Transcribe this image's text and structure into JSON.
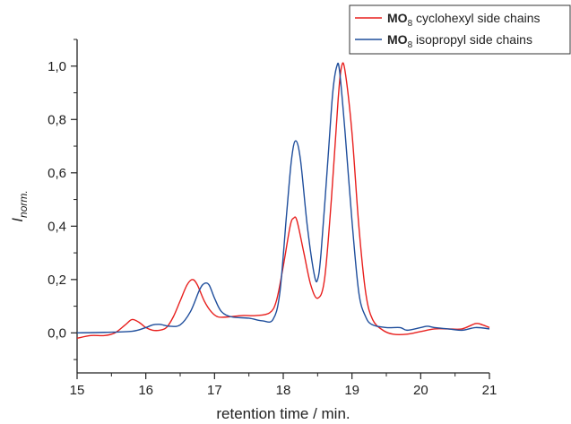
{
  "chart_data": {
    "type": "line",
    "title": "",
    "xlabel": "retention time / min.",
    "ylabel_main": "I",
    "ylabel_sub": "norm.",
    "xlim": [
      15,
      21
    ],
    "ylim": [
      -0.15,
      1.1
    ],
    "x_ticks": [
      15,
      16,
      17,
      18,
      19,
      20,
      21
    ],
    "x_tick_labels": [
      "15",
      "16",
      "17",
      "18",
      "19",
      "20",
      "21"
    ],
    "y_ticks": [
      0.0,
      0.2,
      0.4,
      0.6,
      0.8,
      1.0
    ],
    "y_tick_labels": [
      "0,0",
      "0,2",
      "0,4",
      "0,6",
      "0,8",
      "1,0"
    ],
    "grid": false,
    "legend_position": "top-right",
    "series": [
      {
        "name_bold": "MO",
        "name_sub": "8",
        "name_rest": " cyclohexyl side chains",
        "color": "#e8201e",
        "x": [
          15.0,
          15.2,
          15.4,
          15.55,
          15.7,
          15.8,
          15.9,
          16.0,
          16.1,
          16.2,
          16.3,
          16.4,
          16.5,
          16.6,
          16.68,
          16.75,
          16.85,
          16.95,
          17.05,
          17.2,
          17.4,
          17.6,
          17.8,
          17.9,
          18.0,
          18.1,
          18.15,
          18.2,
          18.3,
          18.4,
          18.5,
          18.6,
          18.7,
          18.8,
          18.85,
          18.9,
          19.0,
          19.1,
          19.2,
          19.3,
          19.45,
          19.6,
          19.8,
          20.0,
          20.2,
          20.4,
          20.6,
          20.8,
          20.9,
          21.0
        ],
        "y": [
          -0.02,
          -0.01,
          -0.01,
          0.0,
          0.03,
          0.05,
          0.04,
          0.02,
          0.01,
          0.01,
          0.02,
          0.06,
          0.12,
          0.18,
          0.2,
          0.18,
          0.12,
          0.08,
          0.06,
          0.06,
          0.065,
          0.065,
          0.075,
          0.12,
          0.25,
          0.4,
          0.43,
          0.42,
          0.3,
          0.18,
          0.13,
          0.2,
          0.5,
          0.88,
          1.0,
          0.98,
          0.75,
          0.4,
          0.15,
          0.05,
          0.01,
          -0.005,
          -0.005,
          0.005,
          0.015,
          0.015,
          0.015,
          0.035,
          0.03,
          0.02
        ]
      },
      {
        "name_bold": "MO",
        "name_sub": "8",
        "name_rest": " isopropyl side chains",
        "color": "#1f4e9c",
        "x": [
          15.0,
          15.4,
          15.8,
          16.0,
          16.1,
          16.2,
          16.35,
          16.5,
          16.65,
          16.78,
          16.85,
          16.92,
          17.0,
          17.1,
          17.25,
          17.5,
          17.7,
          17.85,
          17.95,
          18.05,
          18.12,
          18.18,
          18.25,
          18.35,
          18.45,
          18.5,
          18.55,
          18.65,
          18.72,
          18.78,
          18.82,
          18.9,
          19.0,
          19.1,
          19.2,
          19.3,
          19.5,
          19.7,
          19.8,
          20.0,
          20.1,
          20.2,
          20.4,
          20.6,
          20.8,
          21.0
        ],
        "y": [
          0.0,
          0.002,
          0.006,
          0.02,
          0.03,
          0.032,
          0.025,
          0.03,
          0.08,
          0.16,
          0.185,
          0.18,
          0.13,
          0.08,
          0.06,
          0.055,
          0.045,
          0.05,
          0.15,
          0.45,
          0.65,
          0.72,
          0.65,
          0.4,
          0.22,
          0.2,
          0.3,
          0.65,
          0.9,
          1.0,
          0.98,
          0.75,
          0.42,
          0.15,
          0.06,
          0.03,
          0.02,
          0.02,
          0.01,
          0.02,
          0.025,
          0.02,
          0.015,
          0.01,
          0.02,
          0.015
        ]
      }
    ]
  }
}
